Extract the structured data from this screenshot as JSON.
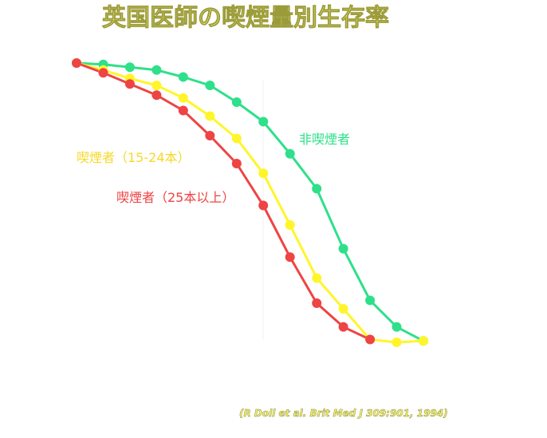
{
  "chart_data": {
    "type": "line",
    "title": "英国医師の喫煙量別生存率",
    "xlabel": "",
    "ylabel": "",
    "citation": "(R Doll et al. Brit Med J 309:901, 1994)",
    "x": [
      1,
      2,
      3,
      4,
      5,
      6,
      7,
      8,
      9,
      10,
      11,
      12,
      13,
      14
    ],
    "ylim": [
      0,
      100
    ],
    "grid": false,
    "legend": "inline",
    "series": [
      {
        "name": "非喫煙者",
        "color": "#2ee08a",
        "x": [
          1,
          2,
          3,
          4,
          5,
          6,
          7,
          8,
          9,
          10,
          11,
          12,
          13,
          14
        ],
        "values": [
          100,
          99.5,
          98.5,
          97.5,
          95,
          92,
          86,
          79,
          67.5,
          55,
          33.5,
          15,
          5.5,
          0.5
        ]
      },
      {
        "name": "喫煙者（15-24本）",
        "color": "#fff52a",
        "x": [
          1,
          2,
          3,
          4,
          5,
          6,
          7,
          8,
          9,
          10,
          11,
          12,
          13,
          14
        ],
        "values": [
          100,
          97.5,
          94.5,
          92,
          87.5,
          81,
          73,
          60.5,
          42,
          23,
          12,
          1,
          0,
          0.5
        ]
      },
      {
        "name": "喫煙者（25本以上）",
        "color": "#ee4444",
        "x": [
          1,
          2,
          3,
          4,
          5,
          6,
          7,
          8,
          9,
          10,
          11,
          12
        ],
        "values": [
          100,
          96.5,
          92.5,
          88.5,
          83,
          74,
          64,
          49,
          30.5,
          14,
          5.5,
          1
        ]
      }
    ]
  }
}
